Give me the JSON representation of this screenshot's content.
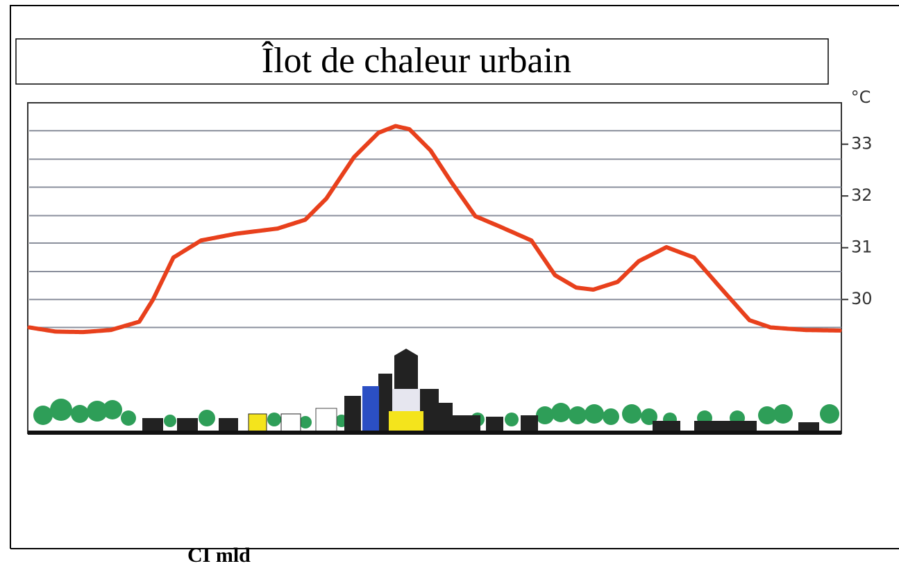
{
  "chart_data": {
    "type": "line",
    "title": "Îlot de chaleur urbain",
    "y_label": "°C",
    "x": [
      0.2,
      3.4,
      6.8,
      10.2,
      13.7,
      15.4,
      17.9,
      21.3,
      25.6,
      30.7,
      34.1,
      36.7,
      40.1,
      43.1,
      45.2,
      46.9,
      49.5,
      52,
      55,
      58,
      61.9,
      64.8,
      67.4,
      69.5,
      72.5,
      75.1,
      78.5,
      81.9,
      85.3,
      88.7,
      91.3,
      95.6,
      99.8
    ],
    "values": [
      29.46,
      29.38,
      29.37,
      29.41,
      29.57,
      30,
      30.81,
      31.14,
      31.27,
      31.37,
      31.54,
      31.95,
      32.75,
      33.22,
      33.35,
      33.29,
      32.88,
      32.28,
      31.61,
      31.41,
      31.14,
      30.47,
      30.23,
      30.19,
      30.34,
      30.74,
      31.01,
      30.81,
      30.2,
      29.6,
      29.46,
      29.41,
      29.4
    ],
    "color": "#e8401c",
    "xlim": [
      0,
      100
    ],
    "ylim": [
      27.4,
      33.8
    ],
    "yticks": [
      30,
      31,
      32,
      33
    ],
    "ygrid": [
      33.26,
      32.71,
      32.17,
      31.62,
      31.09,
      30.54,
      30,
      29.46
    ],
    "grid_color": "#8a8f9c"
  },
  "footer_text": "CI mld"
}
